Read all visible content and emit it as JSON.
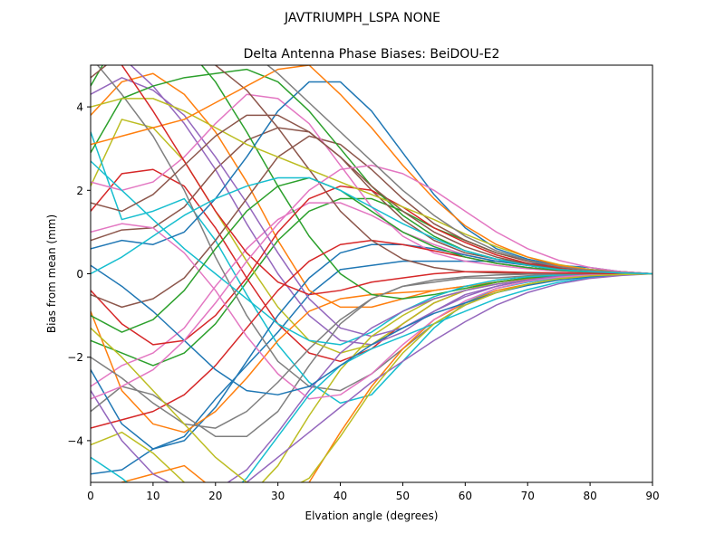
{
  "chart_data": {
    "type": "line",
    "suptitle": "JAVTRIUMPH_LSPA NONE",
    "title": "Delta Antenna Phase Biases: BeiDOU-E2",
    "xlabel": "Elvation angle (degrees)",
    "ylabel": "Bias from mean (mm)",
    "xlim": [
      0,
      90
    ],
    "ylim": [
      -5,
      5
    ],
    "xticks": [
      0,
      10,
      20,
      30,
      40,
      50,
      60,
      70,
      80,
      90
    ],
    "yticks": [
      -4,
      -2,
      0,
      2,
      4
    ],
    "xtick_labels": [
      "0",
      "10",
      "20",
      "30",
      "40",
      "50",
      "60",
      "70",
      "80",
      "90"
    ],
    "ytick_labels": [
      "−4",
      "−2",
      "0",
      "2",
      "4"
    ],
    "grid": false,
    "legend": "none",
    "color_cycle": [
      "#1f77b4",
      "#ff7f0e",
      "#2ca02c",
      "#d62728",
      "#9467bd",
      "#8c564b",
      "#e377c2",
      "#7f7f7f",
      "#bcbd22",
      "#17becf"
    ],
    "x": [
      0,
      5,
      10,
      15,
      20,
      25,
      30,
      35,
      40,
      45,
      50,
      55,
      60,
      65,
      70,
      75,
      80,
      85,
      90
    ],
    "series": [
      {
        "values": [
          -4.8,
          -4.7,
          -4.2,
          -3.9,
          -3.0,
          -2.2,
          -1.4,
          -0.5,
          0.1,
          0.2,
          0.3,
          0.3,
          0.3,
          0.3,
          0.25,
          0.2,
          0.15,
          0.05,
          0
        ]
      },
      {
        "values": [
          3.8,
          4.6,
          4.8,
          4.3,
          3.4,
          2.2,
          0.8,
          -0.4,
          -0.8,
          -0.8,
          -0.6,
          -0.4,
          -0.3,
          -0.2,
          -0.1,
          -0.05,
          0,
          0,
          0
        ]
      },
      {
        "values": [
          -1.6,
          -1.9,
          -2.2,
          -1.9,
          -1.2,
          -0.2,
          0.8,
          1.5,
          1.8,
          1.8,
          1.5,
          1.1,
          0.8,
          0.5,
          0.3,
          0.2,
          0.1,
          0.05,
          0
        ]
      },
      {
        "values": [
          1.5,
          2.4,
          2.5,
          2.1,
          1.1,
          -0.1,
          -1.2,
          -1.9,
          -2.1,
          -1.8,
          -1.2,
          -0.7,
          -0.4,
          -0.2,
          -0.1,
          0,
          0,
          0,
          0
        ]
      },
      {
        "values": [
          5.6,
          5.2,
          4.5,
          3.6,
          2.5,
          1.2,
          0.0,
          -1.0,
          -1.6,
          -1.7,
          -1.4,
          -0.9,
          -0.5,
          -0.3,
          -0.15,
          -0.05,
          0,
          0,
          0
        ]
      },
      {
        "values": [
          0.8,
          1.05,
          1.1,
          1.6,
          2.5,
          3.2,
          3.5,
          3.4,
          2.8,
          2.0,
          1.3,
          0.8,
          0.5,
          0.35,
          0.25,
          0.15,
          0.1,
          0.05,
          0
        ]
      },
      {
        "values": [
          -2.7,
          -2.2,
          -1.9,
          -1.3,
          -0.3,
          0.6,
          1.3,
          1.7,
          1.7,
          1.4,
          1.0,
          0.7,
          0.45,
          0.3,
          0.2,
          0.1,
          0.05,
          0.02,
          0
        ]
      },
      {
        "values": [
          -3.3,
          -2.7,
          -2.9,
          -3.4,
          -3.9,
          -3.9,
          -3.3,
          -2.2,
          -1.2,
          -0.6,
          -0.3,
          -0.2,
          -0.1,
          -0.1,
          -0.05,
          0,
          0,
          0,
          0
        ]
      },
      {
        "values": [
          2.1,
          3.7,
          3.5,
          2.7,
          1.5,
          0.3,
          -0.8,
          -1.6,
          -1.9,
          -1.7,
          -1.2,
          -0.7,
          -0.4,
          -0.2,
          -0.1,
          -0.05,
          0,
          0,
          0
        ]
      },
      {
        "values": [
          3.4,
          1.3,
          1.5,
          1.8,
          0.8,
          -0.5,
          -1.7,
          -2.6,
          -3.1,
          -2.9,
          -2.1,
          -1.3,
          -0.7,
          -0.35,
          -0.2,
          -0.1,
          -0.05,
          0,
          0
        ]
      },
      {
        "values": [
          -2.3,
          -3.6,
          -4.2,
          -4.0,
          -3.2,
          -2.1,
          -1.0,
          -0.1,
          0.5,
          0.7,
          0.7,
          0.6,
          0.45,
          0.3,
          0.2,
          0.1,
          0.05,
          0.02,
          0
        ]
      },
      {
        "values": [
          -0.9,
          -2.8,
          -3.6,
          -3.8,
          -3.3,
          -2.5,
          -1.6,
          -0.9,
          -0.6,
          -0.5,
          -0.45,
          -0.4,
          -0.3,
          -0.2,
          -0.12,
          -0.06,
          -0.03,
          -0.01,
          0
        ]
      },
      {
        "values": [
          4.5,
          5.8,
          6.0,
          5.5,
          4.6,
          3.4,
          2.1,
          0.9,
          0.0,
          -0.5,
          -0.6,
          -0.5,
          -0.35,
          -0.2,
          -0.1,
          -0.05,
          0,
          0,
          0
        ]
      },
      {
        "values": [
          -0.4,
          -1.2,
          -1.7,
          -1.6,
          -1.0,
          -0.1,
          1.0,
          1.8,
          2.1,
          2.0,
          1.6,
          1.1,
          0.75,
          0.45,
          0.25,
          0.15,
          0.08,
          0.03,
          0
        ]
      },
      {
        "values": [
          4.3,
          4.7,
          4.4,
          3.8,
          2.8,
          1.7,
          0.5,
          -0.6,
          -1.3,
          -1.5,
          -1.3,
          -0.9,
          -0.55,
          -0.3,
          -0.15,
          -0.05,
          0,
          0,
          0
        ]
      },
      {
        "values": [
          -0.5,
          -0.8,
          -0.6,
          -0.1,
          0.8,
          1.8,
          2.8,
          3.3,
          3.1,
          2.5,
          1.8,
          1.2,
          0.8,
          0.5,
          0.3,
          0.18,
          0.1,
          0.04,
          0
        ]
      },
      {
        "values": [
          2.2,
          2.0,
          2.2,
          2.8,
          3.6,
          4.3,
          4.2,
          3.6,
          2.6,
          1.6,
          0.9,
          0.5,
          0.3,
          0.2,
          0.12,
          0.06,
          0.03,
          0.01,
          0
        ]
      },
      {
        "values": [
          5.2,
          4.3,
          3.3,
          2.0,
          0.4,
          -1.0,
          -2.1,
          -2.7,
          -2.8,
          -2.4,
          -1.8,
          -1.2,
          -0.75,
          -0.45,
          -0.25,
          -0.12,
          -0.06,
          -0.02,
          0
        ]
      },
      {
        "values": [
          -4.1,
          -3.8,
          -4.3,
          -5.0,
          -5.6,
          -5.4,
          -4.6,
          -3.4,
          -2.3,
          -1.5,
          -1.0,
          -0.6,
          -0.4,
          -0.25,
          -0.15,
          -0.08,
          -0.04,
          -0.01,
          0
        ]
      },
      {
        "values": [
          2.7,
          2.0,
          1.3,
          0.6,
          0.0,
          -0.6,
          -1.2,
          -1.6,
          -1.7,
          -1.4,
          -0.9,
          -0.55,
          -0.3,
          -0.15,
          -0.07,
          -0.03,
          0,
          0,
          0
        ]
      },
      {
        "values": [
          0.6,
          0.8,
          0.7,
          1.0,
          1.8,
          2.8,
          3.9,
          4.6,
          4.6,
          3.9,
          2.9,
          1.9,
          1.1,
          0.6,
          0.35,
          0.2,
          0.1,
          0.04,
          0
        ]
      },
      {
        "values": [
          -5.3,
          -5.0,
          -4.8,
          -4.6,
          -5.2,
          -5.8,
          -5.8,
          -5.0,
          -3.8,
          -2.7,
          -1.8,
          -1.1,
          -0.7,
          -0.4,
          -0.25,
          -0.12,
          -0.06,
          -0.02,
          0
        ]
      },
      {
        "values": [
          2.9,
          4.2,
          4.5,
          4.7,
          4.8,
          4.9,
          4.6,
          3.9,
          3.0,
          2.1,
          1.4,
          0.9,
          0.55,
          0.35,
          0.2,
          0.1,
          0.05,
          0.02,
          0
        ]
      },
      {
        "values": [
          -3.7,
          -3.5,
          -3.3,
          -2.9,
          -2.2,
          -1.3,
          -0.4,
          0.3,
          0.7,
          0.8,
          0.7,
          0.55,
          0.4,
          0.25,
          0.15,
          0.08,
          0.04,
          0.01,
          0
        ]
      },
      {
        "values": [
          -2.8,
          -4.0,
          -4.8,
          -5.2,
          -5.2,
          -4.7,
          -3.8,
          -2.8,
          -1.9,
          -1.3,
          -0.9,
          -0.6,
          -0.4,
          -0.25,
          -0.15,
          -0.07,
          -0.03,
          -0.01,
          0
        ]
      },
      {
        "values": [
          4.7,
          5.3,
          5.6,
          5.4,
          5.0,
          4.4,
          3.5,
          2.5,
          1.5,
          0.8,
          0.35,
          0.15,
          0.05,
          0.02,
          0,
          0,
          0,
          0,
          0
        ]
      },
      {
        "values": [
          1.0,
          1.2,
          1.1,
          0.5,
          -0.4,
          -1.5,
          -2.4,
          -3.0,
          -2.9,
          -2.4,
          -1.7,
          -1.1,
          -0.65,
          -0.35,
          -0.18,
          -0.08,
          -0.03,
          0,
          0
        ]
      },
      {
        "values": [
          -2.0,
          -2.5,
          -3.1,
          -3.6,
          -3.7,
          -3.3,
          -2.6,
          -1.8,
          -1.1,
          -0.6,
          -0.3,
          -0.15,
          -0.07,
          -0.03,
          -0.01,
          0,
          0,
          0,
          0
        ]
      },
      {
        "values": [
          4.0,
          4.2,
          4.2,
          3.9,
          3.5,
          3.1,
          2.8,
          2.5,
          2.2,
          1.9,
          1.6,
          1.3,
          0.95,
          0.65,
          0.4,
          0.22,
          0.1,
          0.03,
          0
        ]
      },
      {
        "values": [
          -4.4,
          -4.9,
          -5.5,
          -5.9,
          -5.6,
          -4.9,
          -3.9,
          -2.9,
          -2.2,
          -1.8,
          -1.5,
          -1.2,
          -0.9,
          -0.6,
          -0.38,
          -0.2,
          -0.09,
          -0.03,
          0
        ]
      },
      {
        "values": [
          0.2,
          -0.3,
          -0.9,
          -1.6,
          -2.3,
          -2.8,
          -2.9,
          -2.7,
          -2.2,
          -1.7,
          -1.3,
          -0.95,
          -0.7,
          -0.45,
          -0.28,
          -0.15,
          -0.07,
          -0.02,
          0
        ]
      },
      {
        "values": [
          3.1,
          3.3,
          3.5,
          3.7,
          4.1,
          4.5,
          4.9,
          5.0,
          4.3,
          3.5,
          2.6,
          1.8,
          1.15,
          0.7,
          0.4,
          0.2,
          0.09,
          0.03,
          0
        ]
      },
      {
        "values": [
          -1.0,
          -1.4,
          -1.1,
          -0.4,
          0.6,
          1.5,
          2.1,
          2.3,
          2.0,
          1.5,
          1.0,
          0.65,
          0.4,
          0.25,
          0.15,
          0.08,
          0.04,
          0.01,
          0
        ]
      },
      {
        "values": [
          5.8,
          5.0,
          3.9,
          2.7,
          1.5,
          0.5,
          -0.2,
          -0.5,
          -0.4,
          -0.2,
          -0.1,
          0.0,
          0.05,
          0.05,
          0.03,
          0.02,
          0.01,
          0,
          0
        ]
      },
      {
        "values": [
          -5.5,
          -5.8,
          -6.0,
          -5.9,
          -5.5,
          -5.0,
          -4.4,
          -3.8,
          -3.2,
          -2.6,
          -2.1,
          -1.6,
          -1.15,
          -0.75,
          -0.45,
          -0.24,
          -0.11,
          -0.04,
          0
        ]
      },
      {
        "values": [
          1.7,
          1.5,
          1.9,
          2.6,
          3.3,
          3.8,
          3.8,
          3.4,
          2.8,
          2.1,
          1.5,
          1.0,
          0.65,
          0.4,
          0.23,
          0.12,
          0.05,
          0.02,
          0
        ]
      },
      {
        "values": [
          -3.0,
          -2.7,
          -2.3,
          -1.6,
          -0.7,
          0.3,
          1.2,
          2.0,
          2.5,
          2.6,
          2.4,
          2.0,
          1.5,
          1.0,
          0.6,
          0.32,
          0.15,
          0.05,
          0
        ]
      },
      {
        "values": [
          5.0,
          5.5,
          5.9,
          6.0,
          5.8,
          5.4,
          4.8,
          4.1,
          3.4,
          2.7,
          2.0,
          1.4,
          0.9,
          0.55,
          0.32,
          0.17,
          0.08,
          0.03,
          0
        ]
      },
      {
        "values": [
          -1.3,
          -2.0,
          -2.8,
          -3.6,
          -4.4,
          -5.0,
          -5.3,
          -4.9,
          -3.9,
          -2.8,
          -1.9,
          -1.2,
          -0.75,
          -0.45,
          -0.25,
          -0.12,
          -0.05,
          -0.02,
          0
        ]
      },
      {
        "values": [
          0.0,
          0.4,
          0.9,
          1.4,
          1.8,
          2.1,
          2.3,
          2.3,
          2.0,
          1.6,
          1.2,
          0.85,
          0.55,
          0.35,
          0.2,
          0.1,
          0.05,
          0.02,
          0
        ]
      }
    ]
  }
}
